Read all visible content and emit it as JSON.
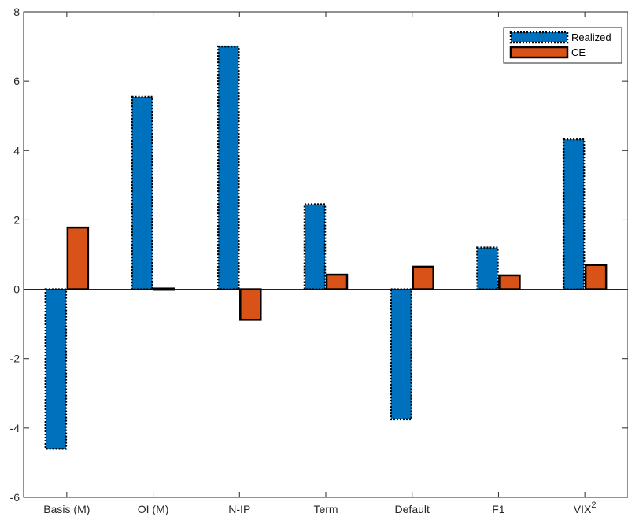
{
  "chart_data": {
    "type": "bar",
    "categories": [
      "Basis (M)",
      "OI (M)",
      "N-IP",
      "Term",
      "Default",
      "F1",
      "VIX"
    ],
    "category_superscripts": [
      "",
      "",
      "",
      "",
      "",
      "",
      "2"
    ],
    "series": [
      {
        "name": "Realized",
        "values": [
          -4.6,
          5.55,
          7.0,
          2.45,
          -3.75,
          1.2,
          4.32
        ],
        "color": "#0072BD",
        "edge": "dotted"
      },
      {
        "name": "CE",
        "values": [
          1.78,
          0.02,
          -0.88,
          0.42,
          0.65,
          0.4,
          0.7
        ],
        "color": "#D95319",
        "edge": "solid"
      }
    ],
    "ylim": [
      -6,
      8
    ],
    "yticks": [
      "-6",
      "-4",
      "-2",
      "0",
      "2",
      "4",
      "6",
      "8"
    ],
    "xlabel": "",
    "ylabel": "",
    "title": "",
    "grid": false,
    "legend_position": "top-right",
    "zero_line": true
  }
}
